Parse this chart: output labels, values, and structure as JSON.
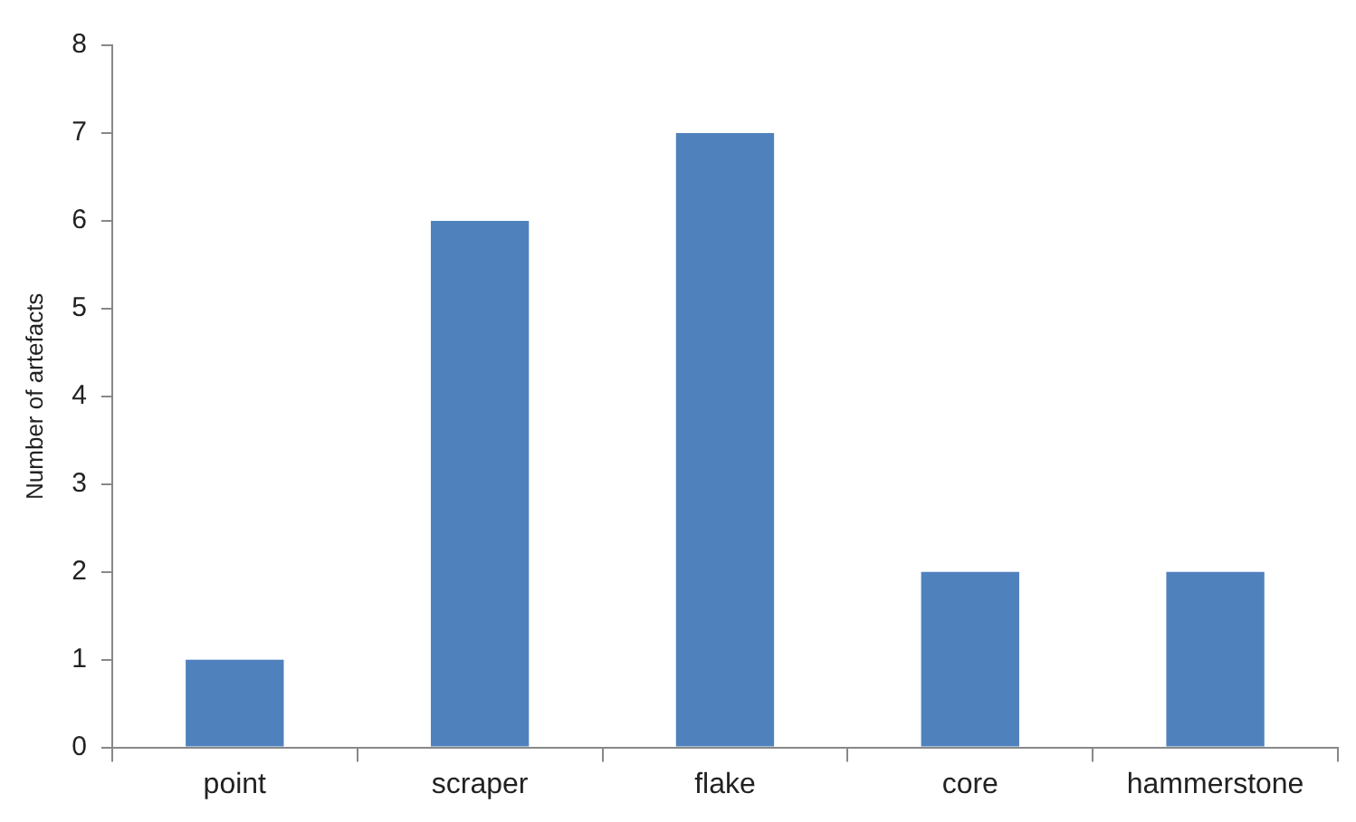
{
  "chart_data": {
    "type": "bar",
    "ylabel": "Number of artefacts",
    "categories": [
      "point",
      "scraper",
      "flake",
      "core",
      "hammerstone"
    ],
    "values": [
      1,
      6,
      7,
      2,
      2
    ],
    "color": "#4f81bd",
    "ylim": [
      0,
      8
    ],
    "yticks": [
      0,
      1,
      2,
      3,
      4,
      5,
      6,
      7,
      8
    ],
    "grid": false,
    "legend": false
  }
}
